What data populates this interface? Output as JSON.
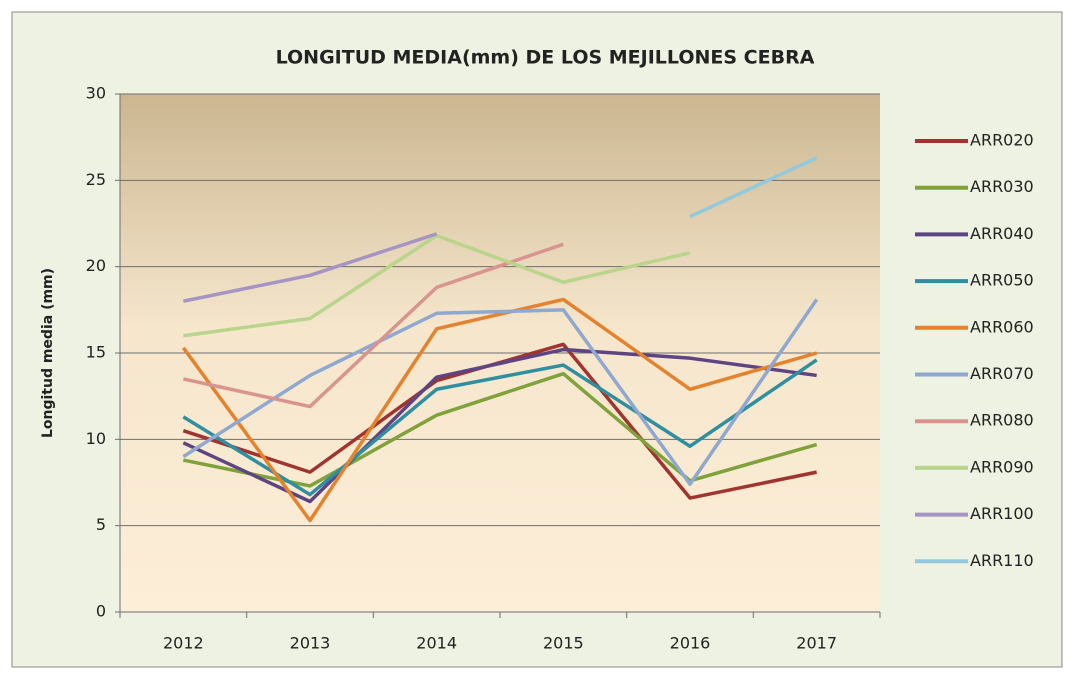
{
  "chart_data": {
    "type": "line",
    "title": "LONGITUD MEDIA(mm) DE LOS MEJILLONES CEBRA",
    "y_label": "Longitud media (mm)",
    "categories": [
      "2012",
      "2013",
      "2014",
      "2015",
      "2016",
      "2017"
    ],
    "ylim": [
      0,
      30
    ],
    "yticks": [
      0,
      5,
      10,
      15,
      20,
      25,
      30
    ],
    "grid": true,
    "legend": "right",
    "series": [
      {
        "name": "ARR020",
        "color": "#a0342f",
        "values": [
          10.5,
          8.1,
          13.4,
          15.5,
          6.6,
          8.1
        ]
      },
      {
        "name": "ARR030",
        "color": "#7fa23a",
        "values": [
          8.8,
          7.3,
          11.4,
          13.8,
          7.6,
          9.7
        ]
      },
      {
        "name": "ARR040",
        "color": "#5e4483",
        "values": [
          9.8,
          6.4,
          13.6,
          15.2,
          14.7,
          13.7
        ]
      },
      {
        "name": "ARR050",
        "color": "#2f8fa0",
        "values": [
          11.3,
          6.8,
          12.9,
          14.3,
          9.6,
          14.6
        ]
      },
      {
        "name": "ARR060",
        "color": "#e4822e",
        "values": [
          15.3,
          5.3,
          16.4,
          18.1,
          12.9,
          15.0
        ]
      },
      {
        "name": "ARR070",
        "color": "#8fa8d0",
        "values": [
          9.0,
          13.7,
          17.3,
          17.5,
          7.4,
          18.1
        ]
      },
      {
        "name": "ARR080",
        "color": "#d99490",
        "values": [
          13.5,
          11.9,
          18.8,
          21.3,
          null,
          null
        ]
      },
      {
        "name": "ARR090",
        "color": "#b9d58c",
        "values": [
          16.0,
          17.0,
          21.8,
          19.1,
          20.8,
          null
        ]
      },
      {
        "name": "ARR100",
        "color": "#a594c4",
        "values": [
          18.0,
          19.5,
          21.9,
          null,
          null,
          null
        ]
      },
      {
        "name": "ARR110",
        "color": "#93c9dc",
        "values": [
          null,
          null,
          null,
          null,
          22.9,
          26.3
        ]
      }
    ]
  }
}
